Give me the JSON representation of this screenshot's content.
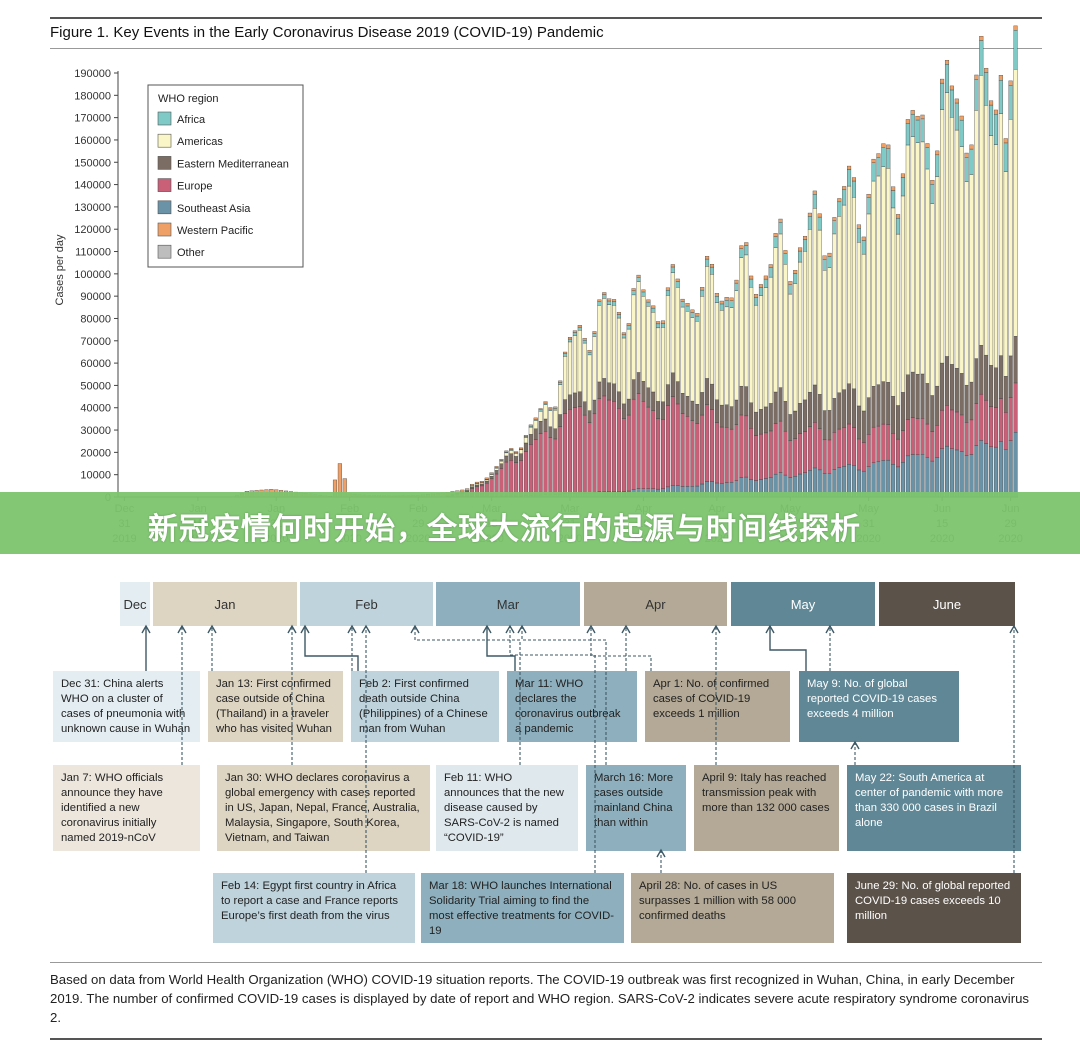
{
  "figure_title": "Figure 1. Key Events in the Early Coronavirus Disease 2019 (COVID-19) Pandemic",
  "banner": "新冠疫情何时开始，全球大流行的起源与时间线探析",
  "chart_data": {
    "type": "bar",
    "stacked": true,
    "ylabel": "Cases per day",
    "ylim": [
      0,
      190000
    ],
    "yticks": [
      "0",
      "10000",
      "20000",
      "30000",
      "40000",
      "50000",
      "60000",
      "70000",
      "80000",
      "90000",
      "100000",
      "110000",
      "120000",
      "130000",
      "140000",
      "150000",
      "160000",
      "170000",
      "180000",
      "190000"
    ],
    "x_ticks": [
      {
        "day": 0,
        "l1": "Dec",
        "l2": "31",
        "l3": "2019"
      },
      {
        "day": 15,
        "l1": "Jan",
        "l2": "15",
        "l3": "2020"
      },
      {
        "day": 31,
        "l1": "Jan",
        "l2": "31",
        "l3": "2020"
      },
      {
        "day": 46,
        "l1": "Feb",
        "l2": "15",
        "l3": "2020"
      },
      {
        "day": 60,
        "l1": "Feb",
        "l2": "29",
        "l3": "2020"
      },
      {
        "day": 75,
        "l1": "Mar",
        "l2": "15",
        "l3": "2020"
      },
      {
        "day": 91,
        "l1": "Mar",
        "l2": "31",
        "l3": "2020"
      },
      {
        "day": 106,
        "l1": "Apr",
        "l2": "15",
        "l3": "2020"
      },
      {
        "day": 121,
        "l1": "Apr",
        "l2": "30",
        "l3": "2020"
      },
      {
        "day": 136,
        "l1": "May",
        "l2": "15",
        "l3": "2020"
      },
      {
        "day": 152,
        "l1": "May",
        "l2": "31",
        "l3": "2020"
      },
      {
        "day": 167,
        "l1": "Jun",
        "l2": "15",
        "l3": "2020"
      },
      {
        "day": 181,
        "l1": "Jun",
        "l2": "29",
        "l3": "2020"
      }
    ],
    "legend": {
      "title": "WHO region",
      "placement": "top-left",
      "items": [
        {
          "name": "Africa",
          "color": "#7fc9c6"
        },
        {
          "name": "Americas",
          "color": "#fbf6c8"
        },
        {
          "name": "Eastern Mediterranean",
          "color": "#7b6d63"
        },
        {
          "name": "Europe",
          "color": "#c96078"
        },
        {
          "name": "Southeast Asia",
          "color": "#6b93a8"
        },
        {
          "name": "Western Pacific",
          "color": "#efa067"
        },
        {
          "name": "Other",
          "color": "#bdbdbd"
        }
      ]
    },
    "days": 183,
    "date_range": [
      "Dec 31 2019",
      "Jun 30 2020"
    ],
    "keyframes": [
      [
        0,
        0,
        0,
        0,
        0,
        0,
        0
      ],
      [
        22,
        0,
        0,
        0,
        0,
        0,
        0
      ],
      [
        25,
        0,
        0,
        0,
        0,
        0,
        2600
      ],
      [
        30,
        0,
        0,
        0,
        0,
        0,
        3500
      ],
      [
        35,
        0,
        0,
        0,
        0,
        0,
        2200
      ],
      [
        42,
        0,
        0,
        0,
        0,
        0,
        300
      ],
      [
        44,
        0,
        0,
        0,
        0,
        0,
        15000
      ],
      [
        46,
        0,
        0,
        0,
        0,
        0,
        1500
      ],
      [
        50,
        0,
        0,
        0,
        0,
        0,
        700
      ],
      [
        55,
        0,
        0,
        0,
        0,
        0,
        600
      ],
      [
        60,
        0,
        0,
        0,
        0,
        0,
        800
      ],
      [
        65,
        0,
        0,
        0,
        0,
        0,
        1800
      ],
      [
        70,
        100,
        300,
        500,
        1800,
        100,
        700
      ],
      [
        75,
        200,
        800,
        1200,
        8000,
        300,
        600
      ],
      [
        80,
        400,
        1500,
        3200,
        17000,
        500,
        500
      ],
      [
        85,
        600,
        4000,
        5000,
        25000,
        800,
        600
      ],
      [
        88,
        900,
        10000,
        5500,
        30000,
        1200,
        700
      ],
      [
        91,
        1200,
        22000,
        6000,
        35000,
        1500,
        800
      ],
      [
        95,
        1400,
        30000,
        6500,
        38000,
        2000,
        900
      ],
      [
        100,
        1600,
        34000,
        7500,
        39000,
        2500,
        1000
      ],
      [
        106,
        1800,
        36000,
        8500,
        37000,
        3500,
        1000
      ],
      [
        115,
        2500,
        40000,
        9500,
        33000,
        5000,
        1200
      ],
      [
        121,
        3000,
        45000,
        10500,
        28000,
        6500,
        1300
      ],
      [
        130,
        4000,
        55000,
        12000,
        22000,
        8500,
        1400
      ],
      [
        136,
        4800,
        62000,
        13500,
        19000,
        10000,
        1500
      ],
      [
        145,
        6000,
        75000,
        15500,
        17000,
        12500,
        1500
      ],
      [
        152,
        7500,
        85000,
        17000,
        15000,
        14000,
        1600
      ],
      [
        160,
        9000,
        95000,
        18500,
        15000,
        17000,
        1700
      ],
      [
        167,
        11000,
        105000,
        19500,
        16000,
        20000,
        1800
      ],
      [
        175,
        13500,
        105000,
        19000,
        18000,
        22000,
        1900
      ],
      [
        182,
        15000,
        103000,
        18000,
        19000,
        25000,
        2000
      ]
    ],
    "weekly_amplitude": 0.12,
    "peak_day": 179,
    "peak_total": 189000
  },
  "timeline": {
    "months": [
      {
        "label": "Dec",
        "bg": "#e3edf2"
      },
      {
        "label": "Jan",
        "bg": "#ddd4c2"
      },
      {
        "label": "Feb",
        "bg": "#bfd3dd"
      },
      {
        "label": "Mar",
        "bg": "#8eafbd"
      },
      {
        "label": "Apr",
        "bg": "#b3a996"
      },
      {
        "label": "May",
        "bg": "#5f8796"
      },
      {
        "label": "June",
        "bg": "#5b524a"
      }
    ],
    "events": [
      {
        "id": "dec31",
        "text": "Dec 31: China alerts WHO on a cluster of cases of pneumonia with unknown cause in Wuhan",
        "bg": "#e3edf2",
        "dark": false
      },
      {
        "id": "jan7",
        "text": "Jan 7: WHO officials announce they have identified a new coronavirus initially named 2019-nCoV",
        "bg": "#ece6dc",
        "dark": false
      },
      {
        "id": "jan13",
        "text": "Jan 13: First confirmed case outside of China (Thailand) in a traveler who has visited Wuhan",
        "bg": "#ddd4c2",
        "dark": false
      },
      {
        "id": "jan30",
        "text": "Jan 30: WHO declares coronavirus a global emergency with cases reported in US, Japan, Nepal, France, Australia, Malaysia, Singapore, South Korea, Vietnam, and Taiwan",
        "bg": "#ddd4c2",
        "dark": false
      },
      {
        "id": "feb2",
        "text": "Feb 2: First confirmed death outside China (Philippines) of a Chinese man from Wuhan",
        "bg": "#bfd3dd",
        "dark": false
      },
      {
        "id": "feb11",
        "text": "Feb 11: WHO announces that the new disease caused by SARS-CoV-2 is named “COVID-19”",
        "bg": "#dfe8ed",
        "dark": false
      },
      {
        "id": "feb14",
        "text": "Feb 14: Egypt first country in Africa to report a case and France reports Europe’s first death from the virus",
        "bg": "#bfd3dd",
        "dark": false
      },
      {
        "id": "mar11",
        "text": "Mar 11: WHO declares the coronavirus outbreak a pandemic",
        "bg": "#8eafbd",
        "dark": false
      },
      {
        "id": "mar16",
        "text": "March 16: More cases outside mainland China than within",
        "bg": "#8eafbd",
        "dark": false
      },
      {
        "id": "mar18",
        "text": "Mar 18: WHO launches International Solidarity Trial aiming to find the most effective treatments for COVID-19",
        "bg": "#8eafbd",
        "dark": false
      },
      {
        "id": "apr1",
        "text": "Apr 1: No. of confirmed cases of COVID-19 exceeds 1 million",
        "bg": "#b3a996",
        "dark": false
      },
      {
        "id": "apr9",
        "text": "April 9: Italy has reached transmission peak with more than 132 000 cases",
        "bg": "#b3a996",
        "dark": false
      },
      {
        "id": "apr28",
        "text": "April 28: No. of cases in US surpasses 1 million with 58 000 confirmed deaths",
        "bg": "#b3a996",
        "dark": false
      },
      {
        "id": "may9",
        "text": "May 9: No. of global reported COVID-19 cases exceeds 4 million",
        "bg": "#5f8796",
        "dark": true
      },
      {
        "id": "may22",
        "text": "May 22: South America at center of pandemic with more than 330 000 cases in Brazil alone",
        "bg": "#5f8796",
        "dark": true
      },
      {
        "id": "jun29",
        "text": "June 29: No. of global reported COVID-19 cases exceeds 10 million",
        "bg": "#5b524a",
        "dark": true
      }
    ]
  },
  "footnote": "Based on data from World Health Organization (WHO) COVID-19 situation reports. The COVID-19 outbreak was first recognized in Wuhan, China, in early December 2019. The number of confirmed COVID-19 cases is displayed by date of report and WHO region. SARS-CoV-2 indicates severe acute respiratory syndrome coronavirus 2."
}
